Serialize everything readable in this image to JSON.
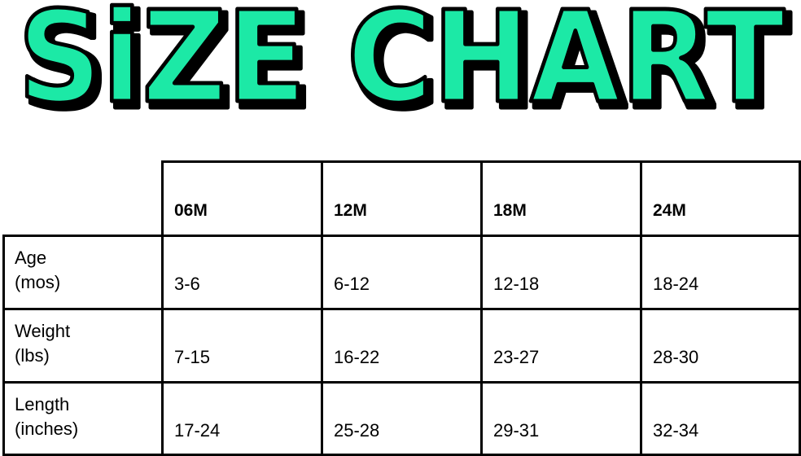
{
  "title": "SiZE CHART",
  "title_color": "#1de9a6",
  "columns": [
    "06M",
    "12M",
    "18M",
    "24M"
  ],
  "rows": [
    {
      "label_line1": "Age",
      "label_line2": "(mos)",
      "values": [
        "3-6",
        "6-12",
        "12-18",
        "18-24"
      ]
    },
    {
      "label_line1": "Weight",
      "label_line2": "(lbs)",
      "values": [
        "7-15",
        "16-22",
        "23-27",
        "28-30"
      ]
    },
    {
      "label_line1": "Length",
      "label_line2": "(inches)",
      "values": [
        "17-24",
        "25-28",
        "29-31",
        "32-34"
      ]
    }
  ]
}
